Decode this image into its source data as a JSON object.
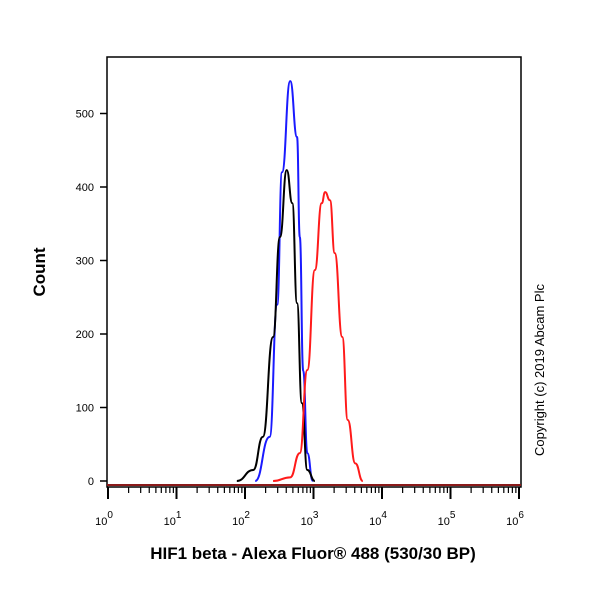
{
  "chart_data": {
    "type": "line",
    "title": "",
    "xlabel": "HIF1 beta - Alexa Fluor® 488 (530/30 BP)",
    "ylabel": "Count",
    "x_scale": "log",
    "xlim": [
      1,
      1000000
    ],
    "ylim": [
      0,
      577
    ],
    "x_ticks": [
      {
        "base": "10",
        "exp": "0",
        "value": 1
      },
      {
        "base": "10",
        "exp": "1",
        "value": 10
      },
      {
        "base": "10",
        "exp": "2",
        "value": 100
      },
      {
        "base": "10",
        "exp": "3",
        "value": 1000
      },
      {
        "base": "10",
        "exp": "4",
        "value": 10000
      },
      {
        "base": "10",
        "exp": "5",
        "value": 100000
      },
      {
        "base": "10",
        "exp": "6",
        "value": 1000000
      }
    ],
    "y_ticks": [
      0,
      100,
      200,
      300,
      400,
      500
    ],
    "y_tick_labels": [
      "0",
      "100",
      "200",
      "300",
      "400",
      "500"
    ],
    "grid": false,
    "series": [
      {
        "name": "blue",
        "color": "#1a1aff",
        "x": [
          141,
          229,
          295,
          347,
          457,
          575,
          631,
          708,
          813,
          977
        ],
        "y": [
          0,
          60,
          240,
          420,
          544,
          468,
          332,
          150,
          38,
          0
        ]
      },
      {
        "name": "black",
        "color": "#000000",
        "x": [
          76,
          132,
          182,
          257,
          324,
          407,
          490,
          575,
          676,
          813,
          1047
        ],
        "y": [
          0,
          15,
          60,
          196,
          332,
          423,
          378,
          242,
          106,
          15,
          0
        ]
      },
      {
        "name": "red",
        "color": "#ff1a1a",
        "x": [
          257,
          457,
          631,
          813,
          1047,
          1318,
          1479,
          1738,
          2042,
          2630,
          3162,
          4074,
          5248
        ],
        "y": [
          0,
          5,
          38,
          151,
          287,
          378,
          393,
          382,
          310,
          196,
          83,
          24,
          0
        ]
      }
    ],
    "annotations": [
      "Copyright (c) 2019 Abcam Plc"
    ]
  }
}
